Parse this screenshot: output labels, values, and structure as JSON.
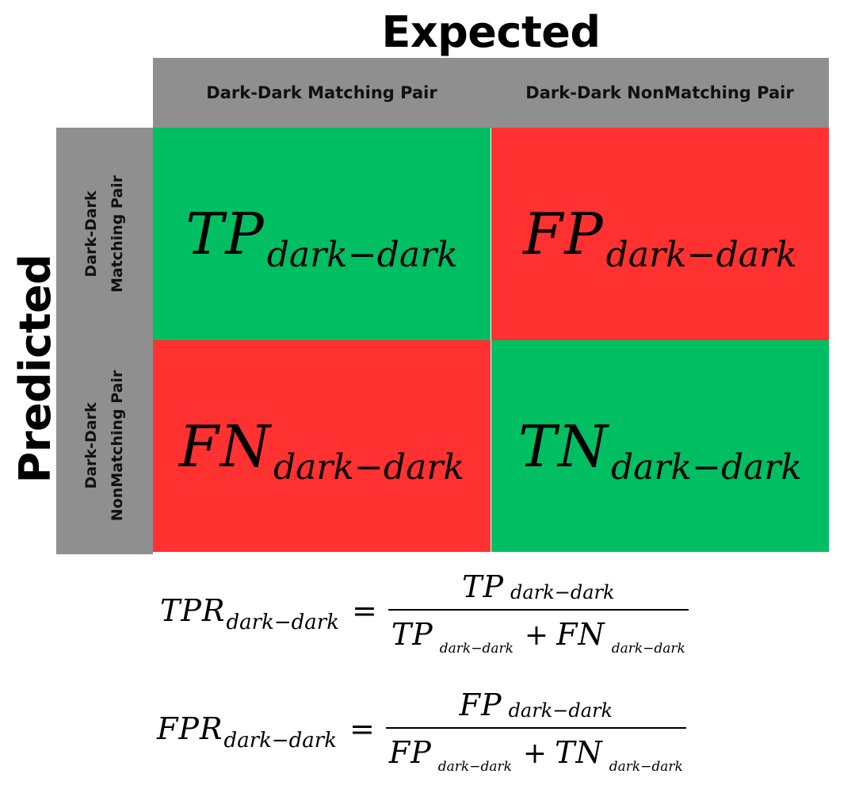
{
  "axes": {
    "expected_title": "Expected",
    "predicted_title": "Predicted"
  },
  "columns": [
    {
      "label": "Dark-Dark Matching Pair"
    },
    {
      "label": "Dark-Dark NonMatching Pair"
    }
  ],
  "rows": [
    {
      "line1": "Dark-Dark",
      "line2": "Matching Pair"
    },
    {
      "line1": "Dark-Dark",
      "line2": "NonMatching Pair"
    }
  ],
  "cells": {
    "tp": {
      "symbol": "TP",
      "subscript": "dark−dark",
      "color": "#00bf63"
    },
    "fp": {
      "symbol": "FP",
      "subscript": "dark−dark",
      "color": "#ff3131"
    },
    "fn": {
      "symbol": "FN",
      "subscript": "dark−dark",
      "color": "#ff3131"
    },
    "tn": {
      "symbol": "TN",
      "subscript": "dark−dark",
      "color": "#00bf63"
    }
  },
  "header_color": "#8f8f8f",
  "formulas": {
    "tpr": {
      "lhs_symbol": "TPR",
      "lhs_subscript": "dark−dark",
      "equals": "=",
      "numerator_symbol": "TP",
      "numerator_subscript": "dark−dark",
      "denominator_term1_symbol": "TP",
      "denominator_term1_subscript": "dark−dark",
      "plus": "+",
      "denominator_term2_symbol": "FN",
      "denominator_term2_subscript": "dark−dark"
    },
    "fpr": {
      "lhs_symbol": "FPR",
      "lhs_subscript": "dark−dark",
      "equals": "=",
      "numerator_symbol": "FP",
      "numerator_subscript": "dark−dark",
      "denominator_term1_symbol": "FP",
      "denominator_term1_subscript": "dark−dark",
      "plus": "+",
      "denominator_term2_symbol": "TN",
      "denominator_term2_subscript": "dark−dark"
    }
  }
}
